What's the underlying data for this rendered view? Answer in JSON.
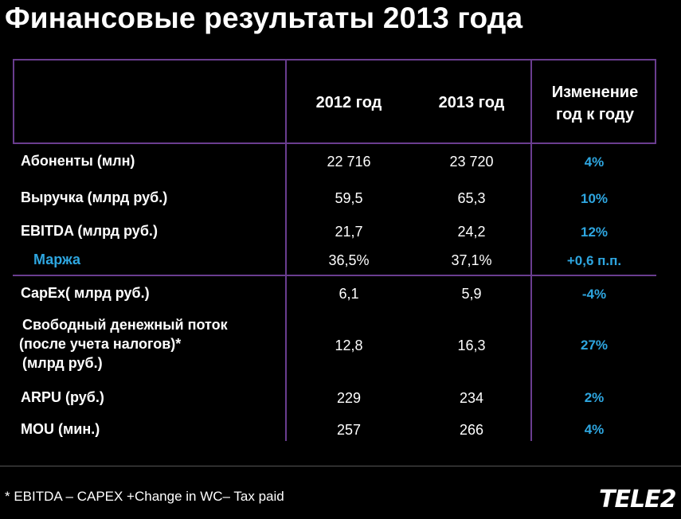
{
  "title": "Финансовые результаты 2013 года",
  "table": {
    "headers": {
      "col_2012": "2012 год",
      "col_2013": "2013 год",
      "change_line1": "Изменение",
      "change_line2": "год к году"
    },
    "rows": [
      {
        "label": "Абоненты (млн)",
        "v2012": "22 716",
        "v2013": "23 720",
        "change": "4%"
      },
      {
        "label": "Выручка (млрд руб.)",
        "v2012": "59,5",
        "v2013": "65,3",
        "change": "10%"
      },
      {
        "label": "EBITDA (млрд руб.)",
        "v2012": "21,7",
        "v2013": "24,2",
        "change": "12%"
      },
      {
        "label": "Маржа",
        "v2012": "36,5%",
        "v2013": "37,1%",
        "change": "+0,6 п.п."
      },
      {
        "label": "CapEx( млрд руб.)",
        "v2012": "6,1",
        "v2013": "5,9",
        "change": "-4%"
      },
      {
        "label_lines": [
          "Свободный денежный поток",
          "(после учета налогов)*",
          "(млрд руб.)"
        ],
        "v2012": "12,8",
        "v2013": "16,3",
        "change": "27%"
      },
      {
        "label": "ARPU (руб.)",
        "v2012": "229",
        "v2013": "234",
        "change": "2%"
      },
      {
        "label": "MOU (мин.)",
        "v2012": "257",
        "v2013": "266",
        "change": "4%"
      }
    ]
  },
  "footnote": "* EBITDA – CAPEX +Change in WC– Tax paid",
  "logo": "TELE2",
  "colors": {
    "accent": "#2ea6e0",
    "rule": "#6a3d8f",
    "background": "#000000"
  }
}
